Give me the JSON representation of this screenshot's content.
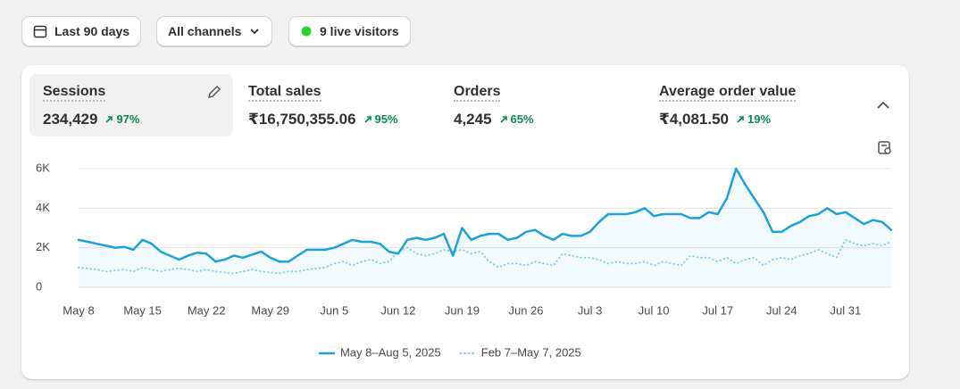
{
  "filters": {
    "date_range": "Last 90 days",
    "channels": "All channels",
    "live_visitors": "9 live visitors"
  },
  "metrics": [
    {
      "label": "Sessions",
      "value": "234,429",
      "change": "97%"
    },
    {
      "label": "Total sales",
      "value": "₹16,750,355.06",
      "change": "95%"
    },
    {
      "label": "Orders",
      "value": "4,245",
      "change": "65%"
    },
    {
      "label": "Average order value",
      "value": "₹4,081.50",
      "change": "19%"
    }
  ],
  "chart_data": {
    "type": "line",
    "categories": [
      "May 8",
      null,
      null,
      null,
      null,
      null,
      null,
      "May 15",
      null,
      null,
      null,
      null,
      null,
      null,
      "May 22",
      null,
      null,
      null,
      null,
      null,
      null,
      "May 29",
      null,
      null,
      null,
      null,
      null,
      null,
      "Jun 5",
      null,
      null,
      null,
      null,
      null,
      null,
      "Jun 12",
      null,
      null,
      null,
      null,
      null,
      null,
      "Jun 19",
      null,
      null,
      null,
      null,
      null,
      null,
      "Jun 26",
      null,
      null,
      null,
      null,
      null,
      null,
      "Jul 3",
      null,
      null,
      null,
      null,
      null,
      null,
      "Jul 10",
      null,
      null,
      null,
      null,
      null,
      null,
      "Jul 17",
      null,
      null,
      null,
      null,
      null,
      null,
      "Jul 24",
      null,
      null,
      null,
      null,
      null,
      null,
      "Jul 31",
      null,
      null,
      null,
      null,
      null
    ],
    "series": [
      {
        "name": "May 8–Aug 5, 2025",
        "color": "#1aa3d9",
        "style": "solid",
        "values": [
          2400,
          2300,
          2200,
          2100,
          2000,
          2050,
          1900,
          2400,
          2200,
          1800,
          1600,
          1400,
          1600,
          1750,
          1700,
          1300,
          1400,
          1600,
          1500,
          1650,
          1800,
          1500,
          1300,
          1300,
          1600,
          1900,
          1900,
          1900,
          2000,
          2200,
          2400,
          2300,
          2300,
          2200,
          1800,
          1700,
          2400,
          2500,
          2400,
          2500,
          2700,
          1600,
          3000,
          2400,
          2600,
          2700,
          2700,
          2400,
          2500,
          2800,
          2900,
          2600,
          2400,
          2700,
          2600,
          2600,
          2800,
          3300,
          3700,
          3700,
          3700,
          3800,
          4000,
          3600,
          3700,
          3700,
          3700,
          3500,
          3500,
          3800,
          3700,
          4500,
          6000,
          5200,
          4500,
          3800,
          2800,
          2800,
          3100,
          3300,
          3600,
          3700,
          4000,
          3700,
          3800,
          3500,
          3200,
          3400,
          3300,
          2900
        ]
      },
      {
        "name": "Feb 7–May 7, 2025",
        "color": "#8ad3ec",
        "style": "dotted",
        "values": [
          1000,
          950,
          900,
          800,
          850,
          900,
          800,
          1000,
          900,
          800,
          900,
          950,
          900,
          800,
          900,
          800,
          750,
          700,
          800,
          900,
          800,
          750,
          700,
          800,
          800,
          900,
          950,
          1000,
          1200,
          1300,
          1100,
          1300,
          1400,
          1200,
          1300,
          1800,
          2000,
          1700,
          1600,
          1700,
          1900,
          1800,
          1900,
          1700,
          1800,
          1300,
          1000,
          1200,
          1200,
          1100,
          1300,
          1200,
          1100,
          1700,
          1600,
          1500,
          1500,
          1400,
          1200,
          1300,
          1200,
          1200,
          1300,
          1100,
          1300,
          1200,
          1100,
          1600,
          1500,
          1500,
          1300,
          1500,
          1200,
          1400,
          1500,
          1100,
          1400,
          1500,
          1400,
          1600,
          1700,
          1900,
          1700,
          1500,
          2400,
          2200,
          2100,
          2200,
          2100,
          2300
        ]
      }
    ],
    "ylim": [
      0,
      6000
    ],
    "yticks": [
      0,
      {
        "value": 2000,
        "label": "2K"
      },
      {
        "value": 4000,
        "label": "4K"
      },
      {
        "value": 6000,
        "label": "6K"
      }
    ],
    "grid": true
  }
}
